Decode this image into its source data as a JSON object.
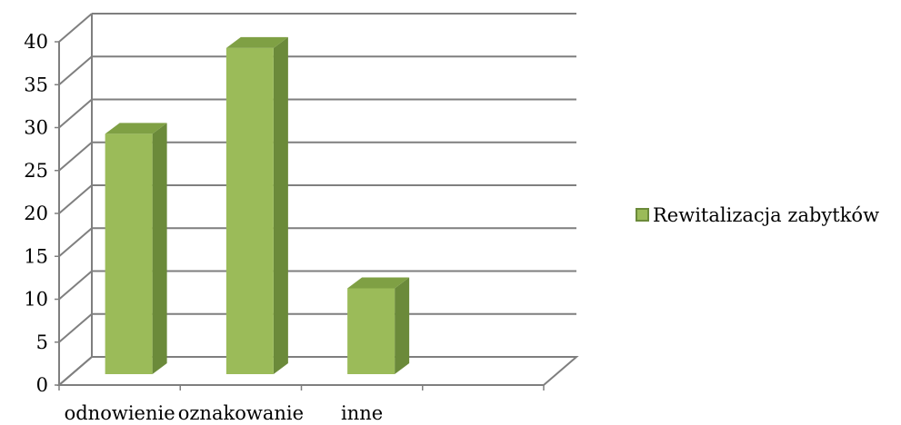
{
  "chart_data": {
    "type": "bar",
    "categories": [
      "odnowienie",
      "oznakowanie",
      "inne",
      ""
    ],
    "series": [
      {
        "name": "Rewitalizacja zabytków",
        "values": [
          28,
          38,
          10,
          null
        ]
      }
    ],
    "ylim": [
      0,
      40
    ],
    "yticks": [
      0,
      5,
      10,
      15,
      20,
      25,
      30,
      35,
      40
    ],
    "grid": true,
    "legend_position": "right",
    "colors": {
      "bar_front": "#9bbb59",
      "bar_side": "#6b8a3a",
      "bar_top": "#7fa044",
      "grid": "#7f7f7f"
    }
  }
}
